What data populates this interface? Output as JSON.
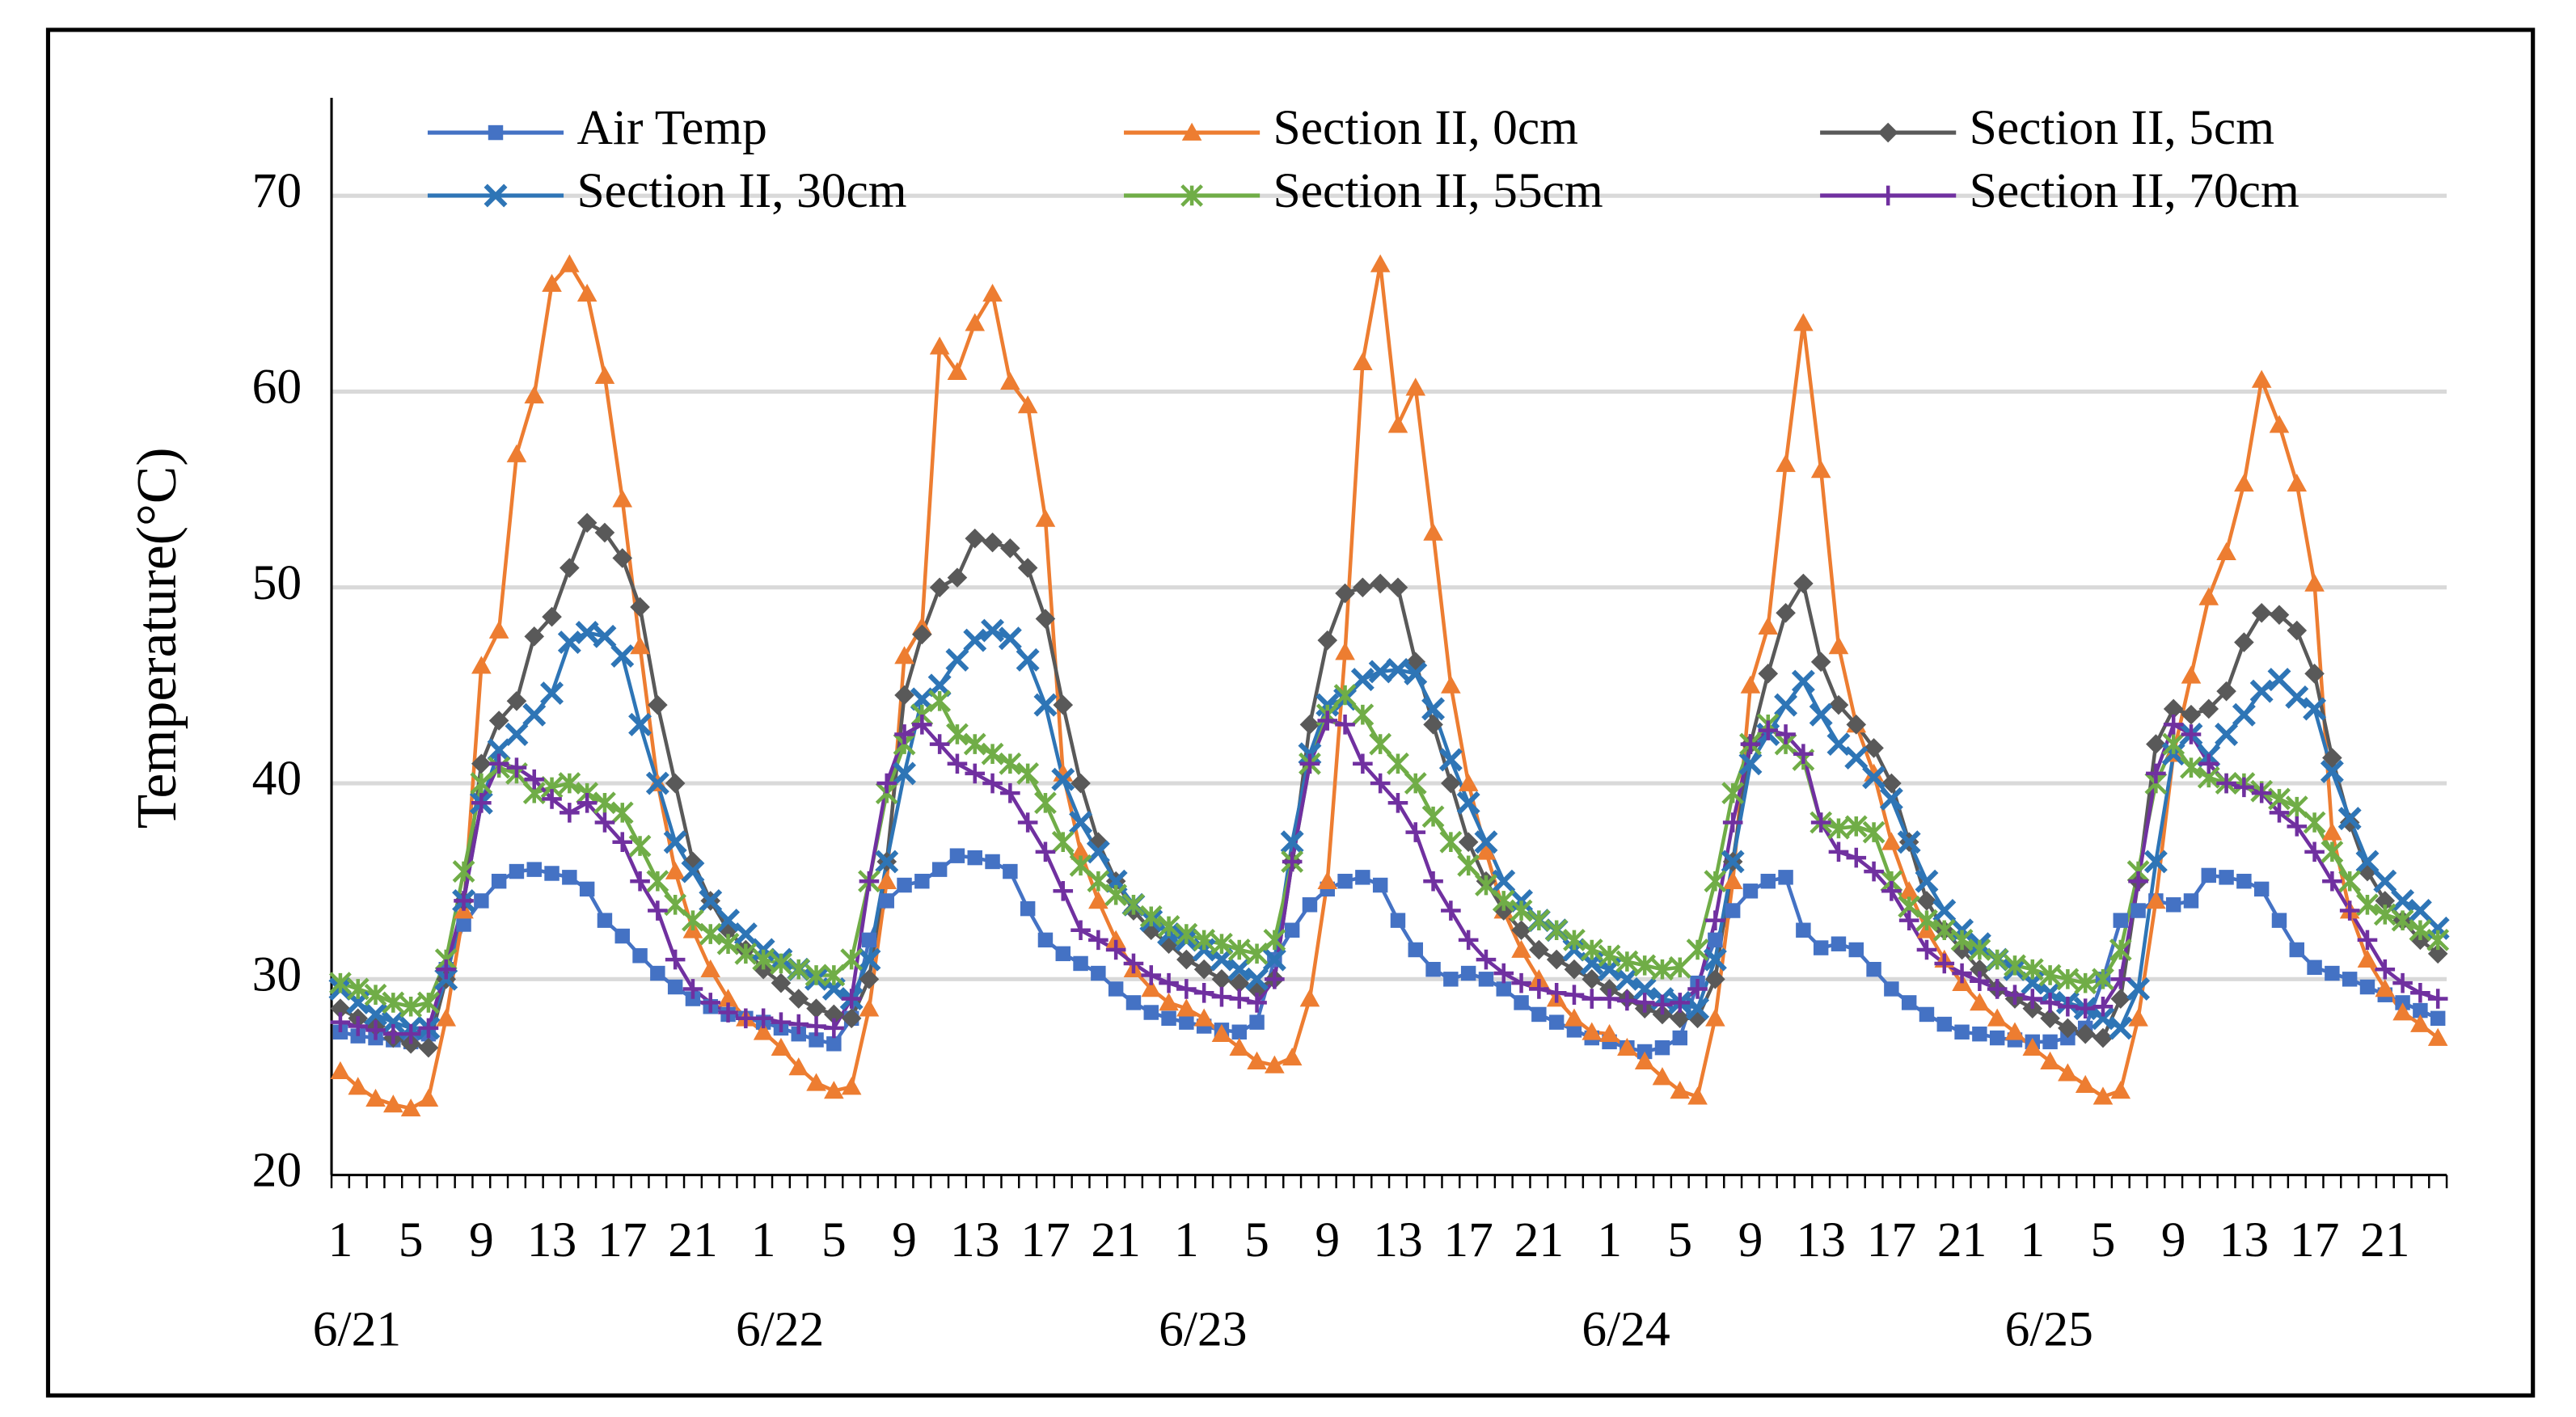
{
  "chart_data": {
    "type": "line",
    "y_label": "Temperature(°C)",
    "ylim": [
      20,
      75
    ],
    "yticks": [
      20,
      30,
      40,
      50,
      60,
      70
    ],
    "grid": true,
    "legend": "top",
    "categories": [
      "1",
      null,
      null,
      null,
      "5",
      null,
      null,
      null,
      "9",
      null,
      null,
      null,
      "13",
      null,
      null,
      null,
      "17",
      null,
      null,
      null,
      "21",
      null,
      null,
      null,
      "1",
      null,
      null,
      null,
      "5",
      null,
      null,
      null,
      "9",
      null,
      null,
      null,
      "13",
      null,
      null,
      null,
      "17",
      null,
      null,
      null,
      "21",
      null,
      null,
      null,
      "1",
      null,
      null,
      null,
      "5",
      null,
      null,
      null,
      "9",
      null,
      null,
      null,
      "13",
      null,
      null,
      null,
      "17",
      null,
      null,
      null,
      "21",
      null,
      null,
      null,
      "1",
      null,
      null,
      null,
      "5",
      null,
      null,
      null,
      "9",
      null,
      null,
      null,
      "13",
      null,
      null,
      null,
      "17",
      null,
      null,
      null,
      "21",
      null,
      null,
      null,
      "1",
      null,
      null,
      null,
      "5",
      null,
      null,
      null,
      "9",
      null,
      null,
      null,
      "13",
      null,
      null,
      null,
      "17",
      null,
      null,
      null,
      "21",
      null,
      null,
      null
    ],
    "day_labels": [
      "6/21",
      "6/22",
      "6/23",
      "6/24",
      "6/25"
    ],
    "series": [
      {
        "name": "Air Temp",
        "color": "#4472c4",
        "marker": "square",
        "values": [
          27.3,
          27.1,
          27,
          26.9,
          26.8,
          27.2,
          30.5,
          32.8,
          34,
          35,
          35.5,
          35.6,
          35.4,
          35.2,
          34.6,
          33,
          32.2,
          31.2,
          30.3,
          29.6,
          29,
          28.6,
          28.2,
          28,
          27.8,
          27.5,
          27.2,
          26.9,
          26.7,
          28,
          32,
          34,
          34.8,
          35,
          35.6,
          36.3,
          36.2,
          36,
          35.5,
          33.6,
          32,
          31.3,
          30.8,
          30.3,
          29.5,
          28.8,
          28.3,
          28,
          27.8,
          27.6,
          27.4,
          27.3,
          27.8,
          31,
          32.5,
          33.8,
          34.6,
          35,
          35.2,
          34.8,
          33,
          31.5,
          30.5,
          30,
          30.3,
          30,
          29.5,
          28.8,
          28.2,
          27.8,
          27.4,
          27,
          26.8,
          26.5,
          26.3,
          26.5,
          27,
          29.8,
          32,
          33.5,
          34.5,
          35,
          35.2,
          32.5,
          31.6,
          31.8,
          31.5,
          30.5,
          29.5,
          28.8,
          28.2,
          27.7,
          27.3,
          27.2,
          27,
          26.9,
          26.8,
          26.8,
          27,
          27.5,
          30,
          33,
          33.5,
          34,
          33.8,
          34,
          35.3,
          35.2,
          35,
          34.6,
          33,
          31.5,
          30.6,
          30.3,
          30,
          29.6,
          29.2,
          28.8,
          28.4,
          28
        ]
      },
      {
        "name": "Section II, 0cm",
        "color": "#ed7d31",
        "marker": "triangle",
        "values": [
          25.3,
          24.5,
          23.9,
          23.6,
          23.4,
          23.9,
          28,
          33.5,
          46,
          47.8,
          56.8,
          59.8,
          65.5,
          66.5,
          65,
          60.8,
          54.5,
          47,
          40,
          35.5,
          32.5,
          30.5,
          29,
          28,
          27.3,
          26.5,
          25.5,
          24.7,
          24.3,
          24.5,
          28.5,
          35,
          46.5,
          48,
          62.3,
          61,
          63.5,
          65,
          60.5,
          59.3,
          53.5,
          40.5,
          36.5,
          34,
          32,
          30.5,
          29.5,
          28.8,
          28.5,
          28,
          27.2,
          26.5,
          25.8,
          25.6,
          26,
          29,
          35,
          46.7,
          61.5,
          66.5,
          58.3,
          60.2,
          52.8,
          45,
          40,
          36.5,
          33.5,
          31.5,
          30,
          29,
          28,
          27.3,
          27.2,
          26.5,
          25.8,
          25,
          24.3,
          24,
          28,
          35,
          45,
          48,
          56.3,
          63.5,
          56,
          47,
          43,
          40.5,
          37,
          34.5,
          32.5,
          31,
          29.8,
          28.8,
          28,
          27.3,
          26.5,
          25.8,
          25.2,
          24.6,
          24,
          24.3,
          28,
          34,
          41.5,
          45.5,
          49.5,
          51.8,
          55.3,
          60.6,
          58.3,
          55.3,
          50.2,
          37.5,
          33.5,
          31,
          29.5,
          28.3,
          27.7,
          27
        ]
      },
      {
        "name": "Section II, 5cm",
        "color": "#595959",
        "marker": "diamond",
        "values": [
          28.5,
          28,
          27.6,
          27,
          26.7,
          26.5,
          30,
          34,
          41,
          43.2,
          44.2,
          47.5,
          48.5,
          51,
          53.3,
          52.8,
          51.5,
          49,
          44,
          40,
          36,
          34,
          32.5,
          31.5,
          30.5,
          29.8,
          29,
          28.5,
          28.2,
          28,
          30,
          36,
          44.5,
          47.6,
          50,
          50.5,
          52.5,
          52.3,
          52,
          51,
          48.4,
          44,
          40,
          37,
          35,
          33.5,
          32.5,
          31.8,
          31,
          30.5,
          30,
          29.8,
          29.5,
          30,
          36,
          43,
          47.3,
          49.7,
          50,
          50.2,
          50,
          46.2,
          43,
          40,
          37,
          35,
          33.5,
          32.5,
          31.5,
          31,
          30.5,
          30,
          29.5,
          29,
          28.5,
          28.2,
          28,
          28,
          30,
          36,
          42,
          45.6,
          48.7,
          50.2,
          46.2,
          44,
          43,
          41.8,
          40,
          37,
          34,
          32.5,
          31.5,
          30.5,
          29.5,
          29,
          28.5,
          28,
          27.5,
          27.2,
          27,
          29,
          35,
          42,
          43.8,
          43.5,
          43.8,
          44.7,
          47.2,
          48.7,
          48.6,
          47.8,
          45.6,
          41.3,
          38,
          35.5,
          34,
          33,
          32,
          31.3
        ]
      },
      {
        "name": "Section II, 30cm",
        "color": "#2e75b6",
        "marker": "x",
        "values": [
          29.5,
          28.8,
          28.2,
          27.8,
          27.5,
          27.5,
          30,
          34,
          39,
          41.7,
          42.5,
          43.5,
          44.6,
          47.2,
          47.7,
          47.5,
          46.5,
          43,
          40,
          37,
          35.5,
          34,
          33,
          32.3,
          31.5,
          31,
          30.5,
          30,
          29.5,
          29,
          31,
          36,
          40.5,
          44.3,
          45,
          46.3,
          47.3,
          47.8,
          47.4,
          46.3,
          44,
          40.2,
          38,
          36.5,
          35,
          33.8,
          33,
          32.3,
          32,
          31.5,
          31,
          30.5,
          30,
          31,
          37,
          41.5,
          44,
          44.3,
          45.3,
          45.7,
          45.8,
          45.6,
          43.8,
          41.2,
          39,
          37,
          35,
          34,
          33,
          32.5,
          31.5,
          30.8,
          30.5,
          30,
          29.5,
          29,
          28.8,
          28.5,
          31,
          36,
          41,
          42.5,
          44,
          45.2,
          43.5,
          42,
          41.3,
          40.3,
          39.2,
          37,
          35,
          33.5,
          32.5,
          31.8,
          31,
          30.5,
          29.8,
          29.3,
          28.8,
          28.5,
          28,
          27.5,
          29.5,
          36,
          41.5,
          42.5,
          41.4,
          42.5,
          43.5,
          44.7,
          45.3,
          44.4,
          43.8,
          40.6,
          38.2,
          36,
          35,
          34,
          33.5,
          32.6
        ]
      },
      {
        "name": "Section II, 55cm",
        "color": "#70ad47",
        "marker": "star",
        "values": [
          29.8,
          29.5,
          29.2,
          28.8,
          28.6,
          28.8,
          31,
          35.5,
          40,
          40.8,
          40.5,
          39.5,
          39.8,
          40,
          39.5,
          39,
          38.5,
          36.8,
          35,
          33.8,
          33,
          32.3,
          31.8,
          31.3,
          31,
          30.8,
          30.5,
          30.2,
          30.2,
          31,
          35,
          39.5,
          42,
          43.5,
          44.2,
          42.5,
          42,
          41.5,
          41,
          40.5,
          39,
          37,
          35.8,
          35,
          34.3,
          33.8,
          33.2,
          32.7,
          32.3,
          32,
          31.8,
          31.5,
          31.3,
          32,
          36,
          41,
          43.5,
          44.5,
          43.5,
          42,
          41,
          40,
          38.3,
          37,
          35.8,
          34.8,
          34,
          33.5,
          33,
          32.5,
          32,
          31.5,
          31.2,
          30.9,
          30.7,
          30.5,
          30.6,
          31.5,
          35,
          39.5,
          42,
          43,
          42,
          41.2,
          38,
          37.7,
          37.8,
          37.5,
          35,
          33.7,
          33,
          32.5,
          32,
          31.5,
          31,
          30.7,
          30.5,
          30.2,
          30,
          29.8,
          30,
          31.5,
          35.5,
          40,
          42,
          40.8,
          40.3,
          40,
          40,
          39.6,
          39.2,
          38.8,
          38,
          36.5,
          35,
          33.8,
          33.3,
          33,
          32.5,
          32
        ]
      },
      {
        "name": "Section II, 70cm",
        "color": "#7030a0",
        "marker": "plus",
        "values": [
          27.8,
          27.6,
          27.4,
          27.2,
          27.2,
          27.5,
          30.5,
          34,
          39,
          41,
          40.8,
          40.2,
          39.2,
          38.5,
          39,
          38,
          37,
          35,
          33.5,
          31,
          29.5,
          28.8,
          28.3,
          28,
          28,
          27.8,
          27.7,
          27.6,
          27.5,
          29,
          35,
          40,
          42.5,
          43,
          42,
          41,
          40.5,
          40,
          39.5,
          38,
          36.5,
          34.5,
          32.5,
          32,
          31.5,
          30.8,
          30.2,
          29.8,
          29.5,
          29.3,
          29.1,
          29,
          28.8,
          30,
          36,
          41,
          43.2,
          43,
          41,
          40,
          39,
          37.5,
          35,
          33.5,
          32,
          31,
          30.3,
          29.8,
          29.5,
          29.3,
          29.2,
          29,
          29,
          28.9,
          28.8,
          28.7,
          28.8,
          29.5,
          33,
          38,
          42,
          42.7,
          42.5,
          41.5,
          38,
          36.5,
          36.2,
          35.5,
          34.5,
          33,
          31.5,
          30.8,
          30.3,
          29.9,
          29.5,
          29.2,
          29,
          28.8,
          28.6,
          28.5,
          28.6,
          30,
          35,
          40.5,
          43,
          42.5,
          41,
          40,
          39.8,
          39.5,
          38.5,
          37.8,
          36.5,
          35,
          33.5,
          32,
          30.5,
          29.8,
          29.3,
          29
        ]
      }
    ]
  }
}
